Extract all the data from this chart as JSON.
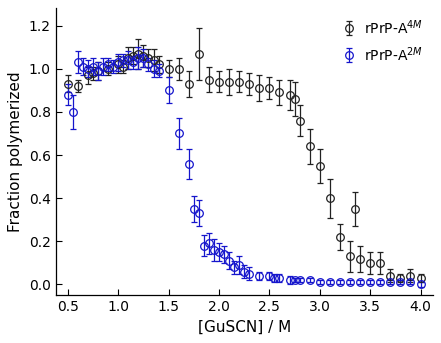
{
  "black_x": [
    0.5,
    0.6,
    0.7,
    0.75,
    0.8,
    0.9,
    1.0,
    1.05,
    1.1,
    1.15,
    1.2,
    1.25,
    1.3,
    1.35,
    1.4,
    1.5,
    1.6,
    1.7,
    1.8,
    1.9,
    2.0,
    2.1,
    2.2,
    2.3,
    2.4,
    2.5,
    2.6,
    2.7,
    2.75,
    2.8,
    2.9,
    3.0,
    3.1,
    3.2,
    3.3,
    3.35,
    3.4,
    3.5,
    3.6,
    3.7,
    3.8,
    3.9,
    4.0
  ],
  "black_y": [
    0.93,
    0.92,
    0.97,
    0.98,
    0.99,
    1.0,
    1.02,
    1.01,
    1.05,
    1.06,
    1.07,
    1.06,
    1.05,
    1.04,
    1.02,
    1.0,
    1.0,
    0.93,
    1.07,
    0.95,
    0.94,
    0.94,
    0.94,
    0.93,
    0.91,
    0.91,
    0.89,
    0.88,
    0.86,
    0.76,
    0.64,
    0.55,
    0.4,
    0.22,
    0.13,
    0.35,
    0.12,
    0.1,
    0.1,
    0.04,
    0.03,
    0.04,
    0.03
  ],
  "black_yerr": [
    0.04,
    0.03,
    0.04,
    0.03,
    0.04,
    0.03,
    0.04,
    0.03,
    0.05,
    0.04,
    0.07,
    0.05,
    0.04,
    0.05,
    0.04,
    0.04,
    0.05,
    0.06,
    0.12,
    0.06,
    0.05,
    0.06,
    0.05,
    0.05,
    0.06,
    0.05,
    0.06,
    0.07,
    0.08,
    0.07,
    0.08,
    0.08,
    0.09,
    0.06,
    0.07,
    0.08,
    0.06,
    0.05,
    0.05,
    0.03,
    0.02,
    0.03,
    0.02
  ],
  "blue_x": [
    0.5,
    0.55,
    0.6,
    0.65,
    0.7,
    0.75,
    0.8,
    0.85,
    0.9,
    0.95,
    1.0,
    1.05,
    1.1,
    1.15,
    1.2,
    1.25,
    1.3,
    1.35,
    1.4,
    1.5,
    1.6,
    1.7,
    1.75,
    1.8,
    1.85,
    1.9,
    1.95,
    2.0,
    2.05,
    2.1,
    2.15,
    2.2,
    2.25,
    2.3,
    2.4,
    2.5,
    2.55,
    2.6,
    2.7,
    2.75,
    2.8,
    2.9,
    3.0,
    3.1,
    3.2,
    3.3,
    3.4,
    3.5,
    3.6,
    3.7,
    3.8,
    3.9,
    4.0
  ],
  "blue_y": [
    0.88,
    0.8,
    1.03,
    1.01,
    1.0,
    1.01,
    0.99,
    1.01,
    1.02,
    1.01,
    1.03,
    1.04,
    1.04,
    1.03,
    1.05,
    1.05,
    1.02,
    1.0,
    0.99,
    0.9,
    0.7,
    0.56,
    0.35,
    0.33,
    0.18,
    0.19,
    0.16,
    0.15,
    0.14,
    0.11,
    0.08,
    0.09,
    0.06,
    0.05,
    0.04,
    0.04,
    0.03,
    0.03,
    0.02,
    0.02,
    0.02,
    0.02,
    0.01,
    0.01,
    0.01,
    0.01,
    0.01,
    0.01,
    0.01,
    0.01,
    0.01,
    0.01,
    0.0
  ],
  "blue_yerr": [
    0.05,
    0.08,
    0.05,
    0.04,
    0.04,
    0.04,
    0.04,
    0.04,
    0.03,
    0.03,
    0.04,
    0.03,
    0.04,
    0.03,
    0.05,
    0.04,
    0.03,
    0.04,
    0.03,
    0.06,
    0.07,
    0.07,
    0.06,
    0.06,
    0.05,
    0.05,
    0.05,
    0.04,
    0.04,
    0.04,
    0.03,
    0.04,
    0.03,
    0.03,
    0.02,
    0.02,
    0.02,
    0.02,
    0.02,
    0.01,
    0.01,
    0.01,
    0.01,
    0.01,
    0.01,
    0.01,
    0.01,
    0.01,
    0.01,
    0.01,
    0.01,
    0.01,
    0.01
  ],
  "xlabel": "[GuSCN] / M",
  "ylabel": "Fraction polymerized",
  "xlim": [
    0.38,
    4.12
  ],
  "ylim": [
    -0.05,
    1.28
  ],
  "xticks": [
    0.5,
    1.0,
    1.5,
    2.0,
    2.5,
    3.0,
    3.5,
    4.0
  ],
  "yticks": [
    0.0,
    0.2,
    0.4,
    0.6,
    0.8,
    1.0,
    1.2
  ],
  "black_label": "rPrP-A$^{4M}$",
  "blue_label": "rPrP-A$^{2M}$",
  "black_color": "#222222",
  "blue_color": "#1515cc",
  "marker_size": 5.5,
  "marker_linewidth": 0.9,
  "capsize": 2.0,
  "elinewidth": 0.9,
  "xlabel_fontsize": 11,
  "ylabel_fontsize": 11,
  "tick_labelsize": 10,
  "legend_fontsize": 10
}
